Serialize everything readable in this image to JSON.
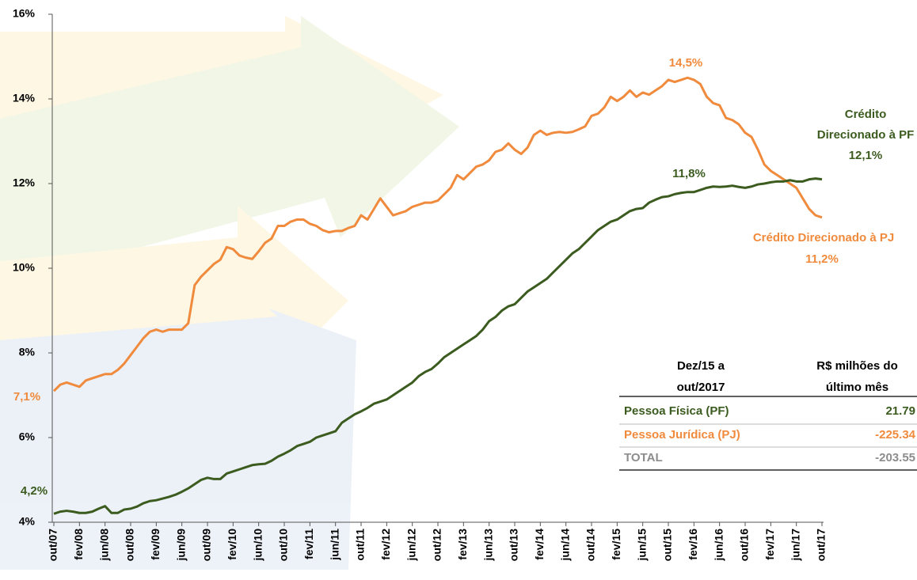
{
  "chart_data": {
    "type": "line",
    "categories": [
      "out/07",
      null,
      null,
      null,
      "fev/08",
      null,
      null,
      null,
      "jun/08",
      null,
      null,
      null,
      "out/08",
      null,
      null,
      null,
      "fev/09",
      null,
      null,
      null,
      "jun/09",
      null,
      null,
      null,
      "out/09",
      null,
      null,
      null,
      "fev/10",
      null,
      null,
      null,
      "jun/10",
      null,
      null,
      null,
      "out/10",
      null,
      null,
      null,
      "fev/11",
      null,
      null,
      null,
      "jun/11",
      null,
      null,
      null,
      "out/11",
      null,
      null,
      null,
      "fev/12",
      null,
      null,
      null,
      "jun/12",
      null,
      null,
      null,
      "out/12",
      null,
      null,
      null,
      "fev/13",
      null,
      null,
      null,
      "jun/13",
      null,
      null,
      null,
      "out/13",
      null,
      null,
      null,
      "fev/14",
      null,
      null,
      null,
      "jun/14",
      null,
      null,
      null,
      "out/14",
      null,
      null,
      null,
      "fev/15",
      null,
      null,
      null,
      "jun/15",
      null,
      null,
      null,
      "out/15",
      null,
      null,
      null,
      "fev/16",
      null,
      null,
      null,
      "jun/16",
      null,
      null,
      null,
      "out/16",
      null,
      null,
      null,
      "fev/17",
      null,
      null,
      null,
      "jun/17",
      null,
      null,
      null,
      "out/17"
    ],
    "series": [
      {
        "name": "Crédito Direcionado à PJ",
        "color": "#f08a3c",
        "values": [
          7.1,
          7.25,
          7.3,
          7.25,
          7.2,
          7.35,
          7.4,
          7.45,
          7.5,
          7.5,
          7.6,
          7.75,
          7.95,
          8.15,
          8.35,
          8.5,
          8.55,
          8.5,
          8.55,
          8.55,
          8.55,
          8.7,
          9.6,
          9.8,
          9.95,
          10.1,
          10.2,
          10.5,
          10.45,
          10.3,
          10.25,
          10.22,
          10.4,
          10.6,
          10.7,
          11.0,
          11.0,
          11.1,
          11.15,
          11.15,
          11.05,
          11.0,
          10.9,
          10.85,
          10.88,
          10.88,
          10.95,
          11.0,
          11.25,
          11.15,
          11.4,
          11.65,
          11.45,
          11.25,
          11.3,
          11.35,
          11.45,
          11.5,
          11.55,
          11.55,
          11.6,
          11.75,
          11.9,
          12.2,
          12.1,
          12.25,
          12.4,
          12.45,
          12.55,
          12.75,
          12.8,
          12.95,
          12.8,
          12.7,
          12.85,
          13.15,
          13.25,
          13.15,
          13.2,
          13.22,
          13.2,
          13.22,
          13.28,
          13.35,
          13.6,
          13.65,
          13.8,
          14.05,
          13.95,
          14.05,
          14.2,
          14.05,
          14.15,
          14.1,
          14.2,
          14.3,
          14.45,
          14.4,
          14.45,
          14.5,
          14.45,
          14.35,
          14.05,
          13.9,
          13.85,
          13.55,
          13.5,
          13.4,
          13.2,
          13.1,
          12.8,
          12.45,
          12.3,
          12.2,
          12.1,
          12.0,
          11.9,
          11.65,
          11.4,
          11.25,
          11.2
        ],
        "value_labels": [
          "7,1%",
          null,
          null,
          null,
          null,
          null,
          null,
          null,
          null,
          null,
          null,
          null,
          null,
          null,
          null,
          null,
          null,
          null,
          null,
          null,
          null,
          null,
          null,
          null,
          null,
          null,
          null,
          null,
          null,
          null,
          null,
          null,
          null,
          null,
          null,
          null,
          null,
          null,
          null,
          null,
          null,
          null,
          null,
          null,
          null,
          null,
          null,
          null,
          null,
          null,
          null,
          null,
          null,
          null,
          null,
          null,
          null,
          null,
          null,
          null,
          null,
          null,
          null,
          null,
          null,
          null,
          null,
          null,
          null,
          null,
          null,
          null,
          null,
          null,
          null,
          null,
          null,
          null,
          null,
          null,
          null,
          null,
          null,
          null,
          null,
          null,
          null,
          null,
          null,
          null,
          null,
          null,
          null,
          null,
          null,
          null,
          null,
          null,
          null,
          "14,5%",
          null,
          null,
          null,
          null,
          null,
          null,
          null,
          null,
          null,
          null,
          null,
          null,
          null,
          null,
          null,
          null,
          null,
          null,
          null,
          null,
          "11,2%"
        ]
      },
      {
        "name": "Crédito Direcionado à PF",
        "color": "#3b5b1f",
        "values": [
          4.2,
          4.25,
          4.27,
          4.25,
          4.22,
          4.22,
          4.25,
          4.32,
          4.38,
          4.22,
          4.22,
          4.3,
          4.32,
          4.37,
          4.45,
          4.5,
          4.52,
          4.56,
          4.6,
          4.65,
          4.72,
          4.8,
          4.9,
          5.0,
          5.05,
          5.02,
          5.02,
          5.15,
          5.2,
          5.25,
          5.3,
          5.35,
          5.37,
          5.38,
          5.45,
          5.55,
          5.62,
          5.7,
          5.8,
          5.85,
          5.9,
          6.0,
          6.05,
          6.1,
          6.15,
          6.35,
          6.45,
          6.55,
          6.62,
          6.7,
          6.8,
          6.85,
          6.9,
          7.0,
          7.1,
          7.2,
          7.3,
          7.45,
          7.55,
          7.62,
          7.75,
          7.9,
          8.0,
          8.1,
          8.2,
          8.3,
          8.4,
          8.55,
          8.75,
          8.85,
          9.0,
          9.1,
          9.15,
          9.3,
          9.45,
          9.55,
          9.65,
          9.75,
          9.9,
          10.05,
          10.2,
          10.35,
          10.45,
          10.6,
          10.75,
          10.9,
          11.0,
          11.1,
          11.15,
          11.25,
          11.35,
          11.4,
          11.42,
          11.55,
          11.62,
          11.68,
          11.7,
          11.75,
          11.78,
          11.8,
          11.8,
          11.85,
          11.9,
          11.93,
          11.92,
          11.93,
          11.95,
          11.92,
          11.9,
          11.93,
          11.98,
          12.0,
          12.03,
          12.05,
          12.05,
          12.08,
          12.05,
          12.05,
          12.1,
          12.12,
          12.1
        ],
        "value_labels": [
          "4,2%",
          null,
          null,
          null,
          null,
          null,
          null,
          null,
          null,
          null,
          null,
          null,
          null,
          null,
          null,
          null,
          null,
          null,
          null,
          null,
          null,
          null,
          null,
          null,
          null,
          null,
          null,
          null,
          null,
          null,
          null,
          null,
          null,
          null,
          null,
          null,
          null,
          null,
          null,
          null,
          null,
          null,
          null,
          null,
          null,
          null,
          null,
          null,
          null,
          null,
          null,
          null,
          null,
          null,
          null,
          null,
          null,
          null,
          null,
          null,
          null,
          null,
          null,
          null,
          null,
          null,
          null,
          null,
          null,
          null,
          null,
          null,
          null,
          null,
          null,
          null,
          null,
          null,
          null,
          null,
          null,
          null,
          null,
          null,
          null,
          null,
          null,
          null,
          null,
          null,
          null,
          null,
          null,
          null,
          null,
          null,
          null,
          null,
          null,
          null,
          "11,8%",
          null,
          null,
          null,
          null,
          null,
          null,
          null,
          null,
          null,
          null,
          null,
          null,
          null,
          null,
          null,
          null,
          null,
          null,
          null,
          "12,1%"
        ]
      }
    ],
    "ylim": [
      4,
      16
    ],
    "yticks": [
      {
        "value": 4,
        "label": "4%"
      },
      {
        "value": 6,
        "label": "6%"
      },
      {
        "value": 8,
        "label": "8%"
      },
      {
        "value": 10,
        "label": "10%"
      },
      {
        "value": 12,
        "label": "12%"
      },
      {
        "value": 14,
        "label": "14%"
      },
      {
        "value": 16,
        "label": "16%"
      }
    ],
    "grid": false
  },
  "table": {
    "header": [
      "Dez/15 a out/2017",
      "R$ milhões do último mês"
    ],
    "rows": [
      [
        "Pessoa Física (PF)",
        "21.79"
      ],
      [
        "Pessoa Jurídica (PJ)",
        "-225.34"
      ],
      [
        "TOTAL",
        "-203.55"
      ]
    ]
  }
}
